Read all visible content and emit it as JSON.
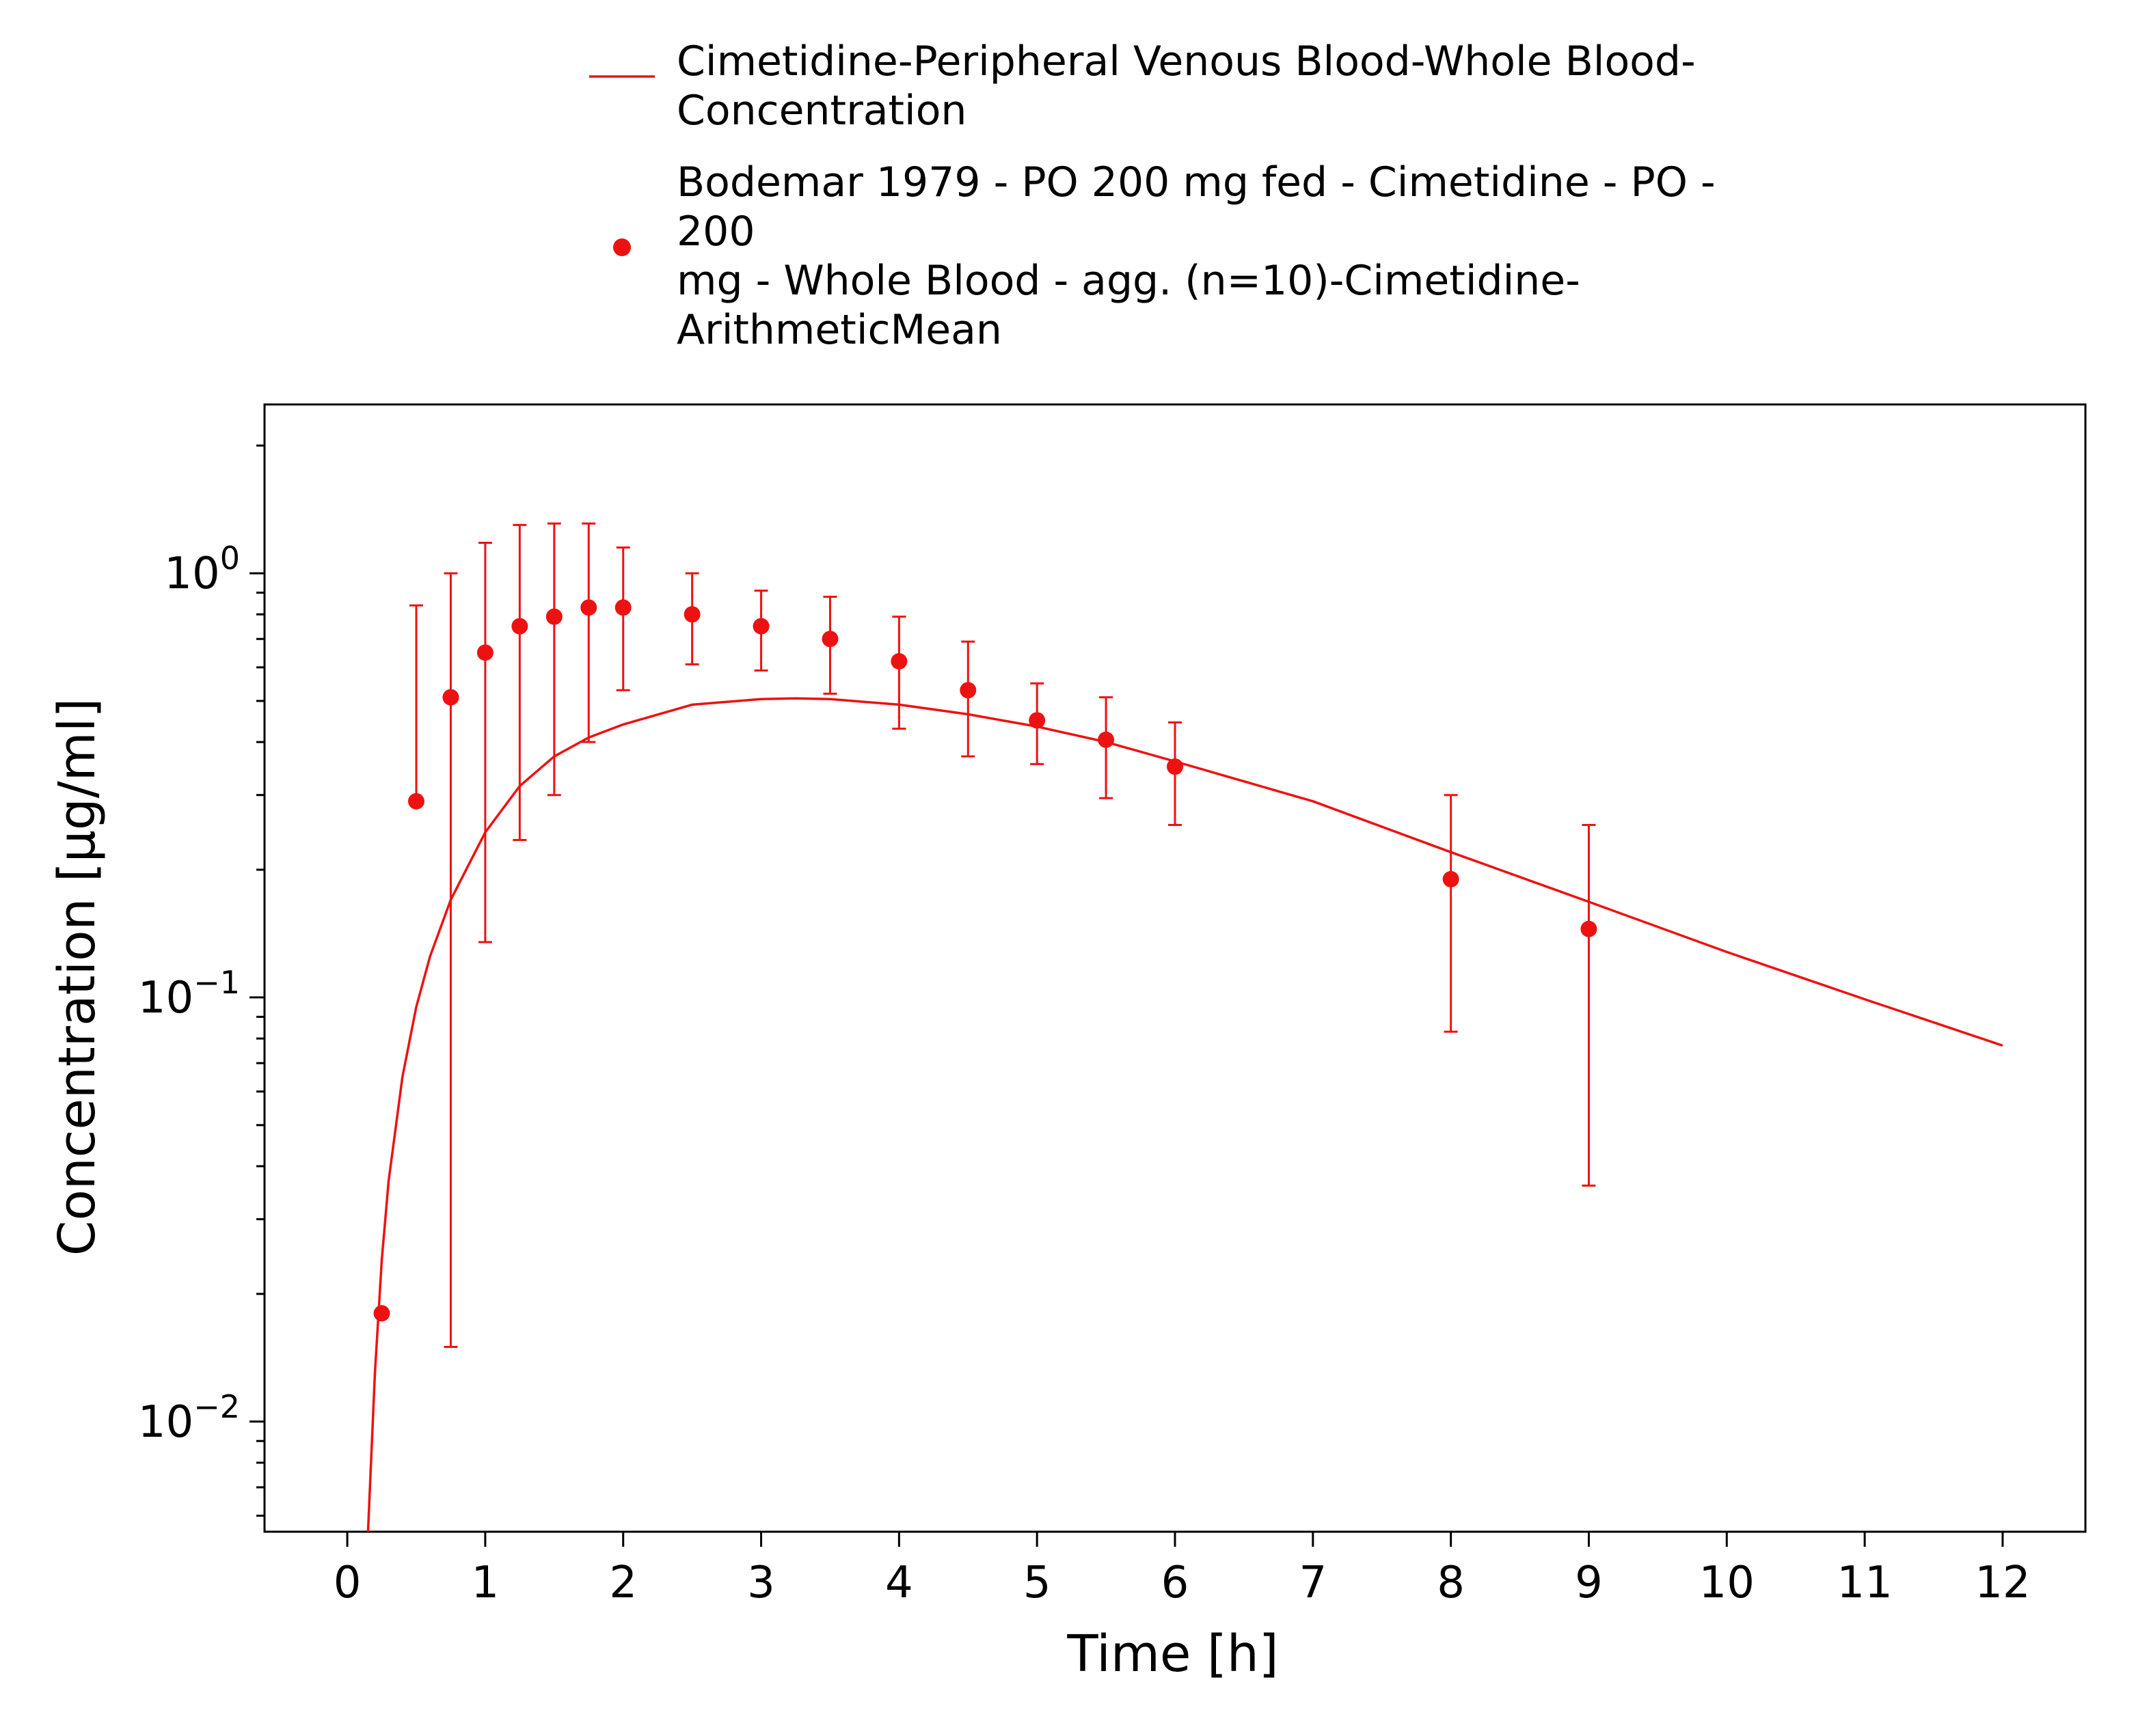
{
  "chart_data": {
    "type": "line",
    "title": "",
    "xlabel": "Time [h]",
    "ylabel": "Concentration [µg/ml]",
    "xlim": [
      -0.6,
      12.6
    ],
    "ylim": [
      0.0055,
      2.5
    ],
    "yscale": "log",
    "grid": false,
    "legend_position": "top",
    "x_ticks": [
      "0",
      "1",
      "2",
      "3",
      "4",
      "5",
      "6",
      "7",
      "8",
      "9",
      "10",
      "11",
      "12"
    ],
    "y_ticks": [
      {
        "base": "10",
        "exp": "0",
        "value": 1
      },
      {
        "base": "10",
        "exp": "−1",
        "value": 0.1
      },
      {
        "base": "10",
        "exp": "−2",
        "value": 0.01
      }
    ],
    "series": [
      {
        "name_lines": [
          "Cimetidine-Peripheral Venous Blood-Whole Blood-",
          "Concentration"
        ],
        "kind": "line",
        "color": "#ee1111",
        "x": [
          0.15,
          0.2,
          0.25,
          0.3,
          0.4,
          0.5,
          0.6,
          0.75,
          1.0,
          1.25,
          1.5,
          1.75,
          2.0,
          2.5,
          3.0,
          3.25,
          3.5,
          4.0,
          4.5,
          5.0,
          5.5,
          6.0,
          7.0,
          8.0,
          9.0,
          10.0,
          11.0,
          12.0
        ],
        "y": [
          0.0055,
          0.013,
          0.024,
          0.037,
          0.065,
          0.095,
          0.125,
          0.17,
          0.245,
          0.315,
          0.37,
          0.41,
          0.44,
          0.49,
          0.505,
          0.507,
          0.505,
          0.49,
          0.465,
          0.435,
          0.4,
          0.36,
          0.29,
          0.22,
          0.168,
          0.128,
          0.099,
          0.077
        ]
      },
      {
        "name_lines": [
          "Bodemar 1979 - PO 200 mg fed - Cimetidine - PO -",
          "200",
          "mg - Whole Blood - agg. (n=10)-Cimetidine-",
          "ArithmeticMean"
        ],
        "kind": "scatter",
        "color": "#ee1111",
        "x": [
          0.25,
          0.5,
          0.75,
          1.0,
          1.25,
          1.5,
          1.75,
          2.0,
          2.5,
          3.0,
          3.5,
          4.0,
          4.5,
          5.0,
          5.5,
          6.0,
          8.0,
          9.0
        ],
        "y": [
          0.018,
          0.29,
          0.51,
          0.65,
          0.75,
          0.79,
          0.83,
          0.83,
          0.8,
          0.75,
          0.7,
          0.62,
          0.53,
          0.45,
          0.405,
          0.35,
          0.19,
          0.145
        ],
        "y_low": [
          null,
          null,
          0.015,
          0.135,
          0.235,
          0.3,
          0.4,
          0.53,
          0.61,
          0.59,
          0.52,
          0.43,
          0.37,
          0.355,
          0.295,
          0.255,
          0.083,
          0.036
        ],
        "y_high": [
          null,
          0.84,
          1.0,
          1.18,
          1.3,
          1.31,
          1.31,
          1.15,
          1.0,
          0.91,
          0.88,
          0.79,
          0.69,
          0.55,
          0.51,
          0.445,
          0.3,
          0.255
        ]
      }
    ]
  }
}
